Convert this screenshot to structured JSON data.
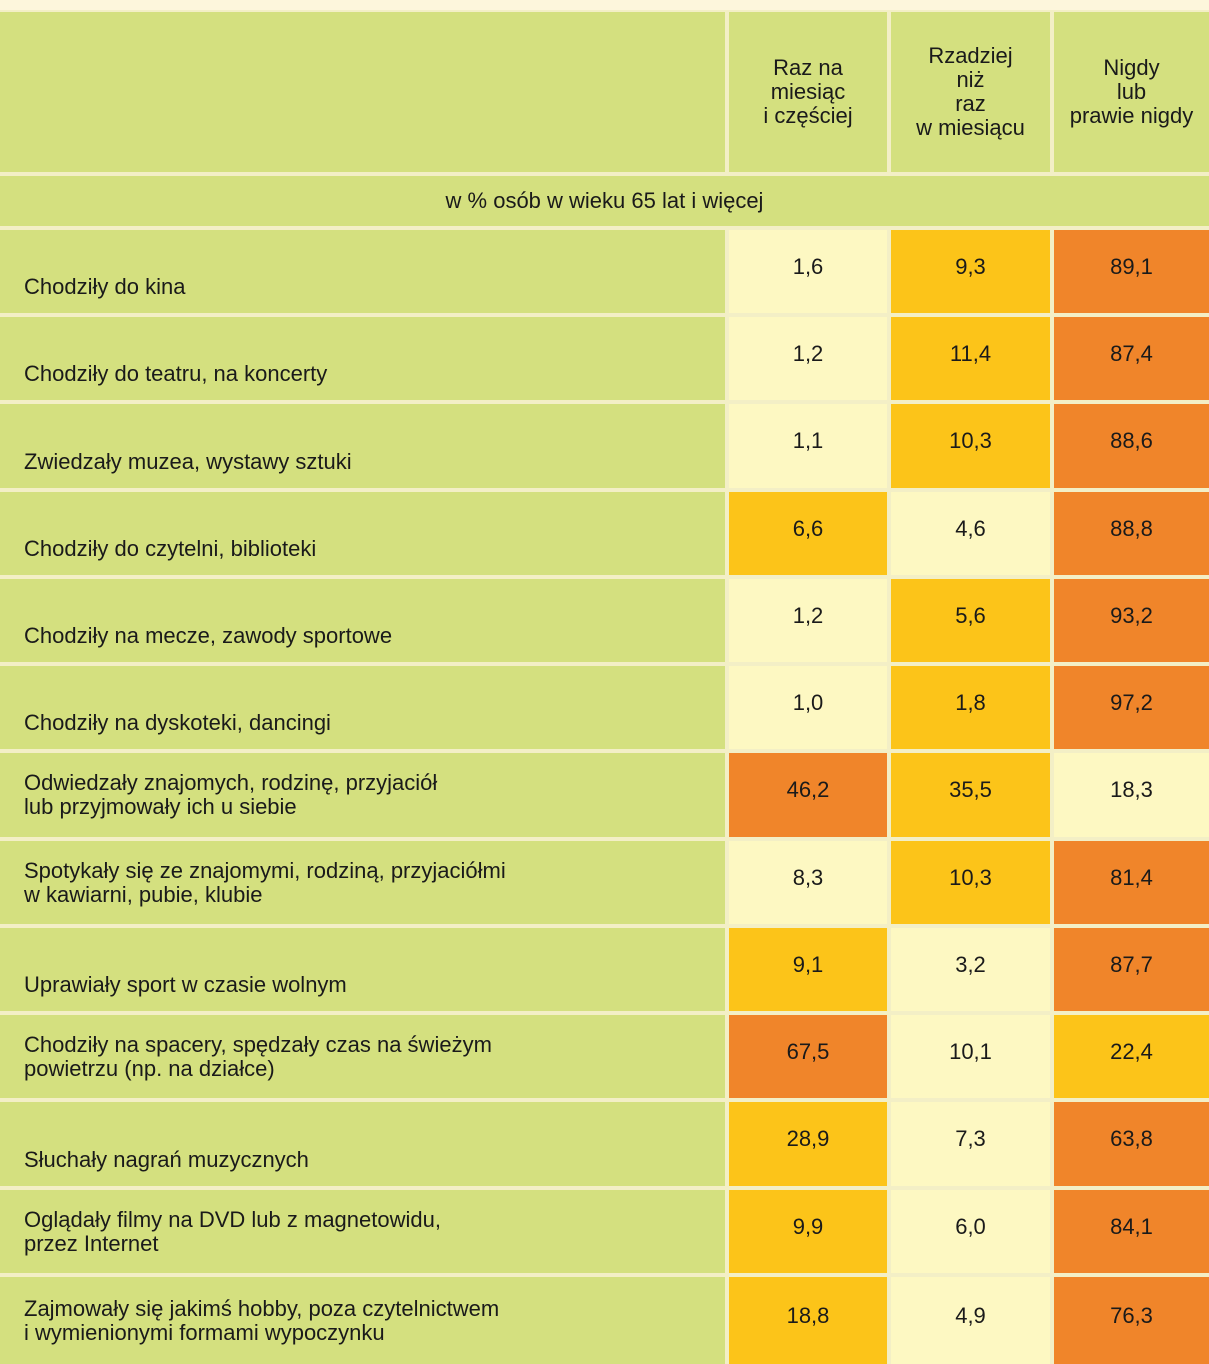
{
  "table": {
    "columns": [
      "Raz na\nmiesiąc\ni częściej",
      "Rzadziej\nniż\nraz\nw miesiącu",
      "Nigdy\nlub\nprawie nigdy"
    ],
    "subheader": "w % osób w wieku 65 lat i więcej",
    "cell_colors": {
      "low": "#fdf8c2",
      "mid": "#fcc419",
      "high": "#f0852a"
    },
    "rows": [
      {
        "label": "Chodziły do kina",
        "values": [
          "1,6",
          "9,3",
          "89,1"
        ]
      },
      {
        "label": "Chodziły do teatru, na koncerty",
        "values": [
          "1,2",
          "11,4",
          "87,4"
        ]
      },
      {
        "label": "Zwiedzały muzea, wystawy sztuki",
        "values": [
          "1,1",
          "10,3",
          "88,6"
        ]
      },
      {
        "label": "Chodziły do czytelni, biblioteki",
        "values": [
          "6,6",
          "4,6",
          "88,8"
        ]
      },
      {
        "label": "Chodziły na mecze, zawody sportowe",
        "values": [
          "1,2",
          "5,6",
          "93,2"
        ]
      },
      {
        "label": "Chodziły na dyskoteki, dancingi",
        "values": [
          "1,0",
          "1,8",
          "97,2"
        ]
      },
      {
        "label": "Odwiedzały znajomych, rodzinę, przyjaciół\nlub przyjmowały ich u siebie",
        "values": [
          "46,2",
          "35,5",
          "18,3"
        ]
      },
      {
        "label": "Spotykały się ze znajomymi, rodziną, przyjaciółmi\nw kawiarni, pubie, klubie",
        "values": [
          "8,3",
          "10,3",
          "81,4"
        ]
      },
      {
        "label": "Uprawiały sport w czasie wolnym",
        "values": [
          "9,1",
          "3,2",
          "87,7"
        ]
      },
      {
        "label": "Chodziły na spacery, spędzały czas na świeżym\npowietrzu (np. na działce)",
        "values": [
          "67,5",
          "10,1",
          "22,4"
        ]
      },
      {
        "label": "Słuchały nagrań muzycznych",
        "values": [
          "28,9",
          "7,3",
          "63,8"
        ]
      },
      {
        "label": "Oglądały filmy na DVD lub z magnetowidu,\nprzez Internet",
        "values": [
          "9,9",
          "6,0",
          "84,1"
        ]
      },
      {
        "label": "Zajmowały się jakimś hobby, poza czytelnictwem\ni wymienionymi formami wypoczynku",
        "values": [
          "18,8",
          "4,9",
          "76,3"
        ]
      }
    ]
  }
}
